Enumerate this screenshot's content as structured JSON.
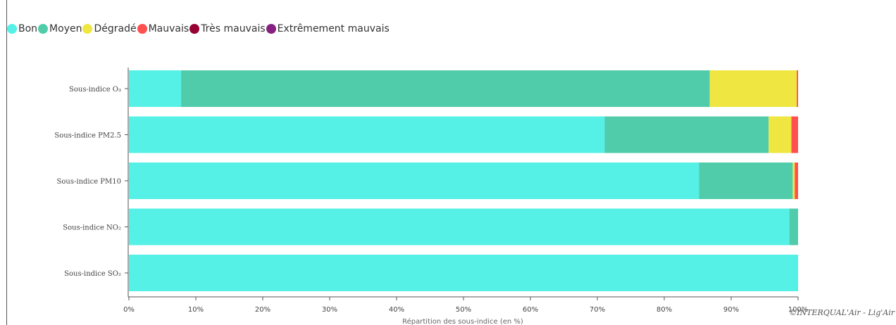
{
  "legend": [
    {
      "label": "Bon",
      "color": "#55f0e6"
    },
    {
      "label": "Moyen",
      "color": "#50ccaa"
    },
    {
      "label": "Dégradé",
      "color": "#f0e641"
    },
    {
      "label": "Mauvais",
      "color": "#ff5050"
    },
    {
      "label": "Très mauvais",
      "color": "#960032"
    },
    {
      "label": "Extrêmement mauvais",
      "color": "#872181"
    }
  ],
  "credit": "©INTERQUAL'Air - Lig'Air",
  "chart_data": {
    "type": "bar",
    "orientation": "horizontal",
    "stacked": true,
    "categories": [
      "Sous-indice O₃",
      "Sous-indice PM2.5",
      "Sous-indice PM10",
      "Sous-indice NO₂",
      "Sous-indice SO₂"
    ],
    "series": [
      {
        "name": "Bon",
        "color": "#55f0e6",
        "values": [
          7.8,
          71.1,
          85.2,
          98.7,
          100
        ]
      },
      {
        "name": "Moyen",
        "color": "#50ccaa",
        "values": [
          79.0,
          24.5,
          14.0,
          1.3,
          0
        ]
      },
      {
        "name": "Dégradé",
        "color": "#f0e641",
        "values": [
          13.0,
          3.4,
          0.3,
          0,
          0
        ]
      },
      {
        "name": "Mauvais",
        "color": "#ff5050",
        "values": [
          0.2,
          1.0,
          0.5,
          0,
          0
        ]
      },
      {
        "name": "Très mauvais",
        "color": "#960032",
        "values": [
          0,
          0,
          0,
          0,
          0
        ]
      },
      {
        "name": "Extrêmement mauvais",
        "color": "#872181",
        "values": [
          0,
          0,
          0,
          0,
          0
        ]
      }
    ],
    "xlabel": "Répartition des sous-indice (en %)",
    "xlim": [
      0,
      100
    ],
    "xticks": [
      "0%",
      "10%",
      "20%",
      "30%",
      "40%",
      "50%",
      "60%",
      "70%",
      "80%",
      "90%",
      "100%"
    ],
    "grid": false,
    "legend_position": "top-left"
  }
}
